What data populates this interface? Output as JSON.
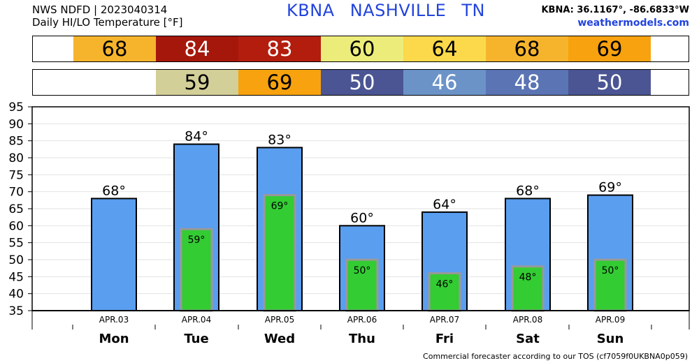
{
  "header": {
    "line1": "NWS NDFD | 2023040314",
    "line2": "Daily HI/LO Temperature [°F]",
    "station": "KBNA NASHVILLE TN",
    "coords": "KBNA: 36.1167°, -86.6833°W",
    "site": "weathermodels.com"
  },
  "strips": {
    "hi": [
      {
        "day": "Mon",
        "value": "68",
        "color": "#f6b42c"
      },
      {
        "day": "Tue",
        "value": "84",
        "color": "#a6170b"
      },
      {
        "day": "Wed",
        "value": "83",
        "color": "#b31d0e"
      },
      {
        "day": "Thu",
        "value": "60",
        "color": "#ecec7a"
      },
      {
        "day": "Fri",
        "value": "64",
        "color": "#fbd94a"
      },
      {
        "day": "Sat",
        "value": "68",
        "color": "#f6b42c"
      },
      {
        "day": "Sun",
        "value": "69",
        "color": "#f7a20e"
      }
    ],
    "lo": [
      {
        "day": "Mon",
        "value": "",
        "color": "#ffffff"
      },
      {
        "day": "Tue",
        "value": "59",
        "color": "#d3cf98"
      },
      {
        "day": "Wed",
        "value": "69",
        "color": "#f7a20e"
      },
      {
        "day": "Thu",
        "value": "50",
        "color": "#4b5593"
      },
      {
        "day": "Fri",
        "value": "46",
        "color": "#6b93c8"
      },
      {
        "day": "Sat",
        "value": "48",
        "color": "#5a74b4"
      },
      {
        "day": "Sun",
        "value": "50",
        "color": "#4b5593"
      }
    ]
  },
  "chart_data": {
    "type": "bar",
    "categories": [
      "Mon",
      "Tue",
      "Wed",
      "Thu",
      "Fri",
      "Sat",
      "Sun"
    ],
    "dates": [
      "APR.03",
      "APR.04",
      "APR.05",
      "APR.06",
      "APR.07",
      "APR.08",
      "APR.09"
    ],
    "series": [
      {
        "values": [
          68,
          84,
          83,
          60,
          64,
          68,
          69
        ],
        "labels": [
          "68°",
          "84°",
          "83°",
          "60°",
          "64°",
          "68°",
          "69°"
        ],
        "color": "#5a9ef0"
      },
      {
        "values": [
          null,
          59,
          69,
          50,
          46,
          48,
          50
        ],
        "labels": [
          "",
          "59°",
          "69°",
          "50°",
          "46°",
          "48°",
          "50°"
        ],
        "color": "#33cc33"
      }
    ],
    "ylim": [
      35,
      95
    ],
    "yticks": [
      35,
      40,
      45,
      50,
      55,
      60,
      65,
      70,
      75,
      80,
      85,
      90,
      95
    ],
    "grid": true
  },
  "footer": "Commercial forecaster according to our TOS (cf7059f0UKBNA0p059)"
}
